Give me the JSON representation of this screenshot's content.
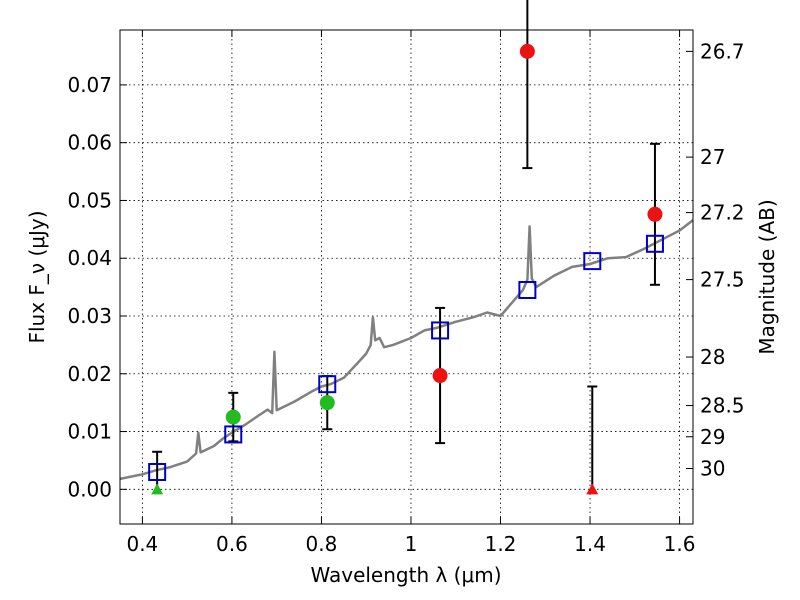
{
  "chart_data": {
    "type": "scatter",
    "xlabel": "Wavelength λ (μm)",
    "ylabel": "Flux F_ν (μJy)",
    "y2label": "Magnitude (AB)",
    "xlim": [
      0.35,
      1.63
    ],
    "ylim": [
      -0.006,
      0.0795
    ],
    "grid": true,
    "x_ticks": [
      {
        "value": 0.4,
        "label": "0.4"
      },
      {
        "value": 0.6,
        "label": "0.6"
      },
      {
        "value": 0.8,
        "label": "0.8"
      },
      {
        "value": 1.0,
        "label": "1"
      },
      {
        "value": 1.2,
        "label": "1.2"
      },
      {
        "value": 1.4,
        "label": "1.4"
      },
      {
        "value": 1.6,
        "label": "1.6"
      }
    ],
    "y_ticks": [
      {
        "value": 0.0,
        "label": "0.00"
      },
      {
        "value": 0.01,
        "label": "0.01"
      },
      {
        "value": 0.02,
        "label": "0.02"
      },
      {
        "value": 0.03,
        "label": "0.03"
      },
      {
        "value": 0.04,
        "label": "0.04"
      },
      {
        "value": 0.05,
        "label": "0.05"
      },
      {
        "value": 0.06,
        "label": "0.06"
      },
      {
        "value": 0.07,
        "label": "0.07"
      }
    ],
    "mag_ticks": [
      {
        "label": "26.7",
        "flux": 0.0758
      },
      {
        "label": "27",
        "flux": 0.0575
      },
      {
        "label": "27.2",
        "flux": 0.0479
      },
      {
        "label": "27.5",
        "flux": 0.0363
      },
      {
        "label": "28",
        "flux": 0.0229
      },
      {
        "label": "28.5",
        "flux": 0.0145
      },
      {
        "label": "29",
        "flux": 0.0091
      },
      {
        "label": "30",
        "flux": 0.0036
      }
    ],
    "colors": {
      "model": "#808080",
      "model_points": "#0000cc",
      "detected_green": "#22bb22",
      "detected_red": "#ee1111",
      "errorbar": "#000000"
    },
    "model_spectrum": [
      [
        0.35,
        0.0018
      ],
      [
        0.4,
        0.0026
      ],
      [
        0.43,
        0.0033
      ],
      [
        0.46,
        0.0038
      ],
      [
        0.5,
        0.0048
      ],
      [
        0.52,
        0.0062
      ],
      [
        0.525,
        0.0098
      ],
      [
        0.53,
        0.0064
      ],
      [
        0.56,
        0.0075
      ],
      [
        0.58,
        0.0088
      ],
      [
        0.6,
        0.0098
      ],
      [
        0.63,
        0.0112
      ],
      [
        0.66,
        0.0128
      ],
      [
        0.68,
        0.0138
      ],
      [
        0.69,
        0.0132
      ],
      [
        0.695,
        0.0238
      ],
      [
        0.7,
        0.0137
      ],
      [
        0.74,
        0.0152
      ],
      [
        0.78,
        0.017
      ],
      [
        0.8,
        0.0178
      ],
      [
        0.82,
        0.0182
      ],
      [
        0.85,
        0.0193
      ],
      [
        0.88,
        0.0218
      ],
      [
        0.9,
        0.0235
      ],
      [
        0.91,
        0.025
      ],
      [
        0.915,
        0.0298
      ],
      [
        0.92,
        0.0258
      ],
      [
        0.93,
        0.0262
      ],
      [
        0.94,
        0.0246
      ],
      [
        0.96,
        0.025
      ],
      [
        1.0,
        0.0262
      ],
      [
        1.03,
        0.0275
      ],
      [
        1.06,
        0.028
      ],
      [
        1.1,
        0.029
      ],
      [
        1.14,
        0.0298
      ],
      [
        1.17,
        0.0306
      ],
      [
        1.2,
        0.03
      ],
      [
        1.22,
        0.0318
      ],
      [
        1.25,
        0.0345
      ],
      [
        1.26,
        0.0363
      ],
      [
        1.265,
        0.0455
      ],
      [
        1.27,
        0.0365
      ],
      [
        1.28,
        0.035
      ],
      [
        1.32,
        0.037
      ],
      [
        1.36,
        0.0385
      ],
      [
        1.4,
        0.039
      ],
      [
        1.44,
        0.04
      ],
      [
        1.48,
        0.0402
      ],
      [
        1.52,
        0.0416
      ],
      [
        1.56,
        0.0432
      ],
      [
        1.6,
        0.0448
      ],
      [
        1.63,
        0.0466
      ]
    ],
    "model_points": [
      {
        "x": 0.433,
        "y": 0.003
      },
      {
        "x": 0.603,
        "y": 0.0095
      },
      {
        "x": 0.813,
        "y": 0.0182
      },
      {
        "x": 1.065,
        "y": 0.0275
      },
      {
        "x": 1.26,
        "y": 0.0345
      },
      {
        "x": 1.405,
        "y": 0.0395
      },
      {
        "x": 1.545,
        "y": 0.0425
      }
    ],
    "detections": [
      {
        "x": 0.603,
        "y": 0.0125,
        "yerr": 0.0042,
        "color": "green"
      },
      {
        "x": 0.813,
        "y": 0.015,
        "yerr": 0.0046,
        "color": "green"
      },
      {
        "x": 1.065,
        "y": 0.0197,
        "yerr": 0.0117,
        "color": "red"
      },
      {
        "x": 1.26,
        "y": 0.0758,
        "yerr": 0.0202,
        "color": "red"
      },
      {
        "x": 1.545,
        "y": 0.0476,
        "yerr": 0.0122,
        "color": "red"
      }
    ],
    "upper_limits": [
      {
        "x": 0.433,
        "y": 0.0,
        "err": 0.0065,
        "color": "green"
      },
      {
        "x": 1.405,
        "y": 0.0,
        "err": 0.0178,
        "color": "red"
      }
    ]
  }
}
